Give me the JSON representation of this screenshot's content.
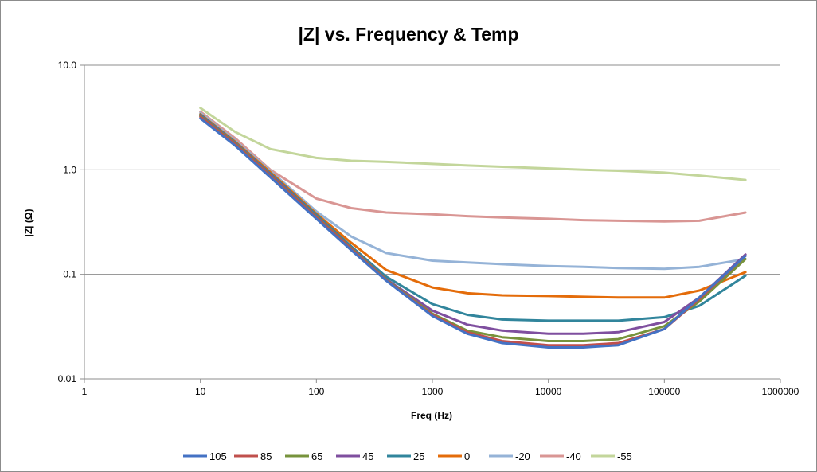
{
  "chart_data": {
    "type": "line",
    "title": "|Z| vs. Frequency & Temp",
    "xlabel": "Freq (Hz)",
    "ylabel": "|Z| (Ω)",
    "x_scale": "log",
    "y_scale": "log",
    "xlim": [
      1,
      1000000
    ],
    "ylim": [
      0.01,
      10
    ],
    "x_ticks": [
      "1",
      "10",
      "100",
      "1000",
      "10000",
      "100000",
      "1000000"
    ],
    "y_ticks": [
      "0.01",
      "0.1",
      "1.0",
      "10.0"
    ],
    "grid": "horizontal major",
    "legend_position": "bottom",
    "x": [
      10,
      20,
      40,
      100,
      200,
      400,
      1000,
      2000,
      4000,
      10000,
      20000,
      40000,
      100000,
      200000,
      500000
    ],
    "series": [
      {
        "name": "105",
        "color": "#4472c4",
        "values": [
          3.1,
          1.7,
          0.85,
          0.34,
          0.17,
          0.087,
          0.04,
          0.027,
          0.022,
          0.02,
          0.02,
          0.021,
          0.03,
          0.06,
          0.15
        ]
      },
      {
        "name": "85",
        "color": "#c0504d",
        "values": [
          3.2,
          1.75,
          0.87,
          0.35,
          0.175,
          0.088,
          0.041,
          0.028,
          0.023,
          0.021,
          0.021,
          0.022,
          0.03,
          0.058,
          0.15
        ]
      },
      {
        "name": "65",
        "color": "#77933c",
        "values": [
          3.25,
          1.78,
          0.88,
          0.355,
          0.178,
          0.089,
          0.042,
          0.029,
          0.025,
          0.023,
          0.023,
          0.024,
          0.032,
          0.055,
          0.14
        ]
      },
      {
        "name": "45",
        "color": "#7f4f9f",
        "values": [
          3.3,
          1.8,
          0.9,
          0.36,
          0.18,
          0.09,
          0.045,
          0.033,
          0.029,
          0.027,
          0.027,
          0.028,
          0.035,
          0.06,
          0.155
        ]
      },
      {
        "name": "25",
        "color": "#31859c",
        "values": [
          3.35,
          1.82,
          0.92,
          0.37,
          0.185,
          0.095,
          0.052,
          0.041,
          0.037,
          0.036,
          0.036,
          0.036,
          0.039,
          0.05,
          0.097
        ]
      },
      {
        "name": "0",
        "color": "#e46c0a",
        "values": [
          3.4,
          1.85,
          0.95,
          0.38,
          0.2,
          0.11,
          0.075,
          0.066,
          0.063,
          0.062,
          0.061,
          0.06,
          0.06,
          0.07,
          0.105
        ]
      },
      {
        "name": "-20",
        "color": "#95b3d7",
        "values": [
          3.5,
          1.9,
          0.98,
          0.4,
          0.23,
          0.16,
          0.135,
          0.13,
          0.125,
          0.12,
          0.118,
          0.115,
          0.113,
          0.118,
          0.14
        ]
      },
      {
        "name": "-40",
        "color": "#d99694",
        "values": [
          3.6,
          2.0,
          1.0,
          0.53,
          0.43,
          0.39,
          0.375,
          0.36,
          0.35,
          0.34,
          0.33,
          0.325,
          0.32,
          0.325,
          0.39
        ]
      },
      {
        "name": "-55",
        "color": "#c3d69b",
        "values": [
          3.9,
          2.3,
          1.58,
          1.3,
          1.22,
          1.19,
          1.14,
          1.1,
          1.07,
          1.03,
          1.0,
          0.98,
          0.94,
          0.88,
          0.8
        ]
      }
    ]
  }
}
